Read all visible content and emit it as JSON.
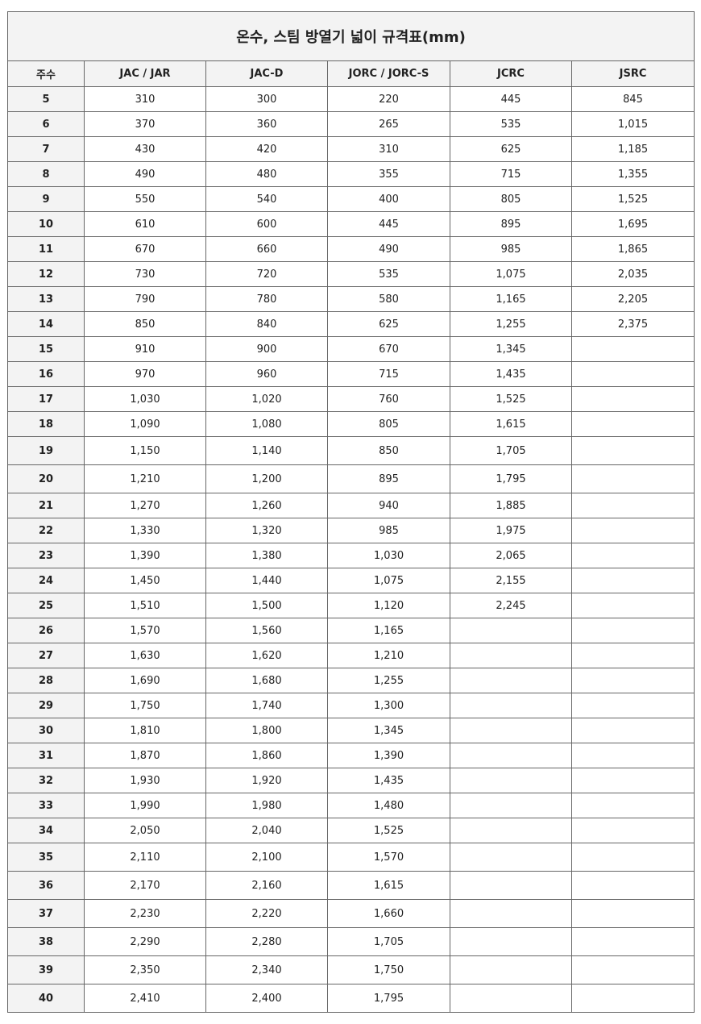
{
  "title": "온수, 스팀 방열기 넓이 규격표(mm)",
  "headers": [
    "주수",
    "JAC / JAR",
    "JAC-D",
    "JORC / JORC-S",
    "JCRC",
    "JSRC"
  ],
  "rows": [
    [
      "5",
      "310",
      "300",
      "220",
      "445",
      "845"
    ],
    [
      "6",
      "370",
      "360",
      "265",
      "535",
      "1,015"
    ],
    [
      "7",
      "430",
      "420",
      "310",
      "625",
      "1,185"
    ],
    [
      "8",
      "490",
      "480",
      "355",
      "715",
      "1,355"
    ],
    [
      "9",
      "550",
      "540",
      "400",
      "805",
      "1,525"
    ],
    [
      "10",
      "610",
      "600",
      "445",
      "895",
      "1,695"
    ],
    [
      "11",
      "670",
      "660",
      "490",
      "985",
      "1,865"
    ],
    [
      "12",
      "730",
      "720",
      "535",
      "1,075",
      "2,035"
    ],
    [
      "13",
      "790",
      "780",
      "580",
      "1,165",
      "2,205"
    ],
    [
      "14",
      "850",
      "840",
      "625",
      "1,255",
      "2,375"
    ],
    [
      "15",
      "910",
      "900",
      "670",
      "1,345",
      ""
    ],
    [
      "16",
      "970",
      "960",
      "715",
      "1,435",
      ""
    ],
    [
      "17",
      "1,030",
      "1,020",
      "760",
      "1,525",
      ""
    ],
    [
      "18",
      "1,090",
      "1,080",
      "805",
      "1,615",
      ""
    ],
    [
      "19",
      "1,150",
      "1,140",
      "850",
      "1,705",
      ""
    ],
    [
      "20",
      "1,210",
      "1,200",
      "895",
      "1,795",
      ""
    ],
    [
      "21",
      "1,270",
      "1,260",
      "940",
      "1,885",
      ""
    ],
    [
      "22",
      "1,330",
      "1,320",
      "985",
      "1,975",
      ""
    ],
    [
      "23",
      "1,390",
      "1,380",
      "1,030",
      "2,065",
      ""
    ],
    [
      "24",
      "1,450",
      "1,440",
      "1,075",
      "2,155",
      ""
    ],
    [
      "25",
      "1,510",
      "1,500",
      "1,120",
      "2,245",
      ""
    ],
    [
      "26",
      "1,570",
      "1,560",
      "1,165",
      "",
      ""
    ],
    [
      "27",
      "1,630",
      "1,620",
      "1,210",
      "",
      ""
    ],
    [
      "28",
      "1,690",
      "1,680",
      "1,255",
      "",
      ""
    ],
    [
      "29",
      "1,750",
      "1,740",
      "1,300",
      "",
      ""
    ],
    [
      "30",
      "1,810",
      "1,800",
      "1,345",
      "",
      ""
    ],
    [
      "31",
      "1,870",
      "1,860",
      "1,390",
      "",
      ""
    ],
    [
      "32",
      "1,930",
      "1,920",
      "1,435",
      "",
      ""
    ],
    [
      "33",
      "1,990",
      "1,980",
      "1,480",
      "",
      ""
    ],
    [
      "34",
      "2,050",
      "2,040",
      "1,525",
      "",
      ""
    ],
    [
      "35",
      "2,110",
      "2,100",
      "1,570",
      "",
      ""
    ],
    [
      "36",
      "2,170",
      "2,160",
      "1,615",
      "",
      ""
    ],
    [
      "37",
      "2,230",
      "2,220",
      "1,660",
      "",
      ""
    ],
    [
      "38",
      "2,290",
      "2,280",
      "1,705",
      "",
      ""
    ],
    [
      "39",
      "2,350",
      "2,340",
      "1,750",
      "",
      ""
    ],
    [
      "40",
      "2,410",
      "2,400",
      "1,795",
      "",
      ""
    ]
  ]
}
